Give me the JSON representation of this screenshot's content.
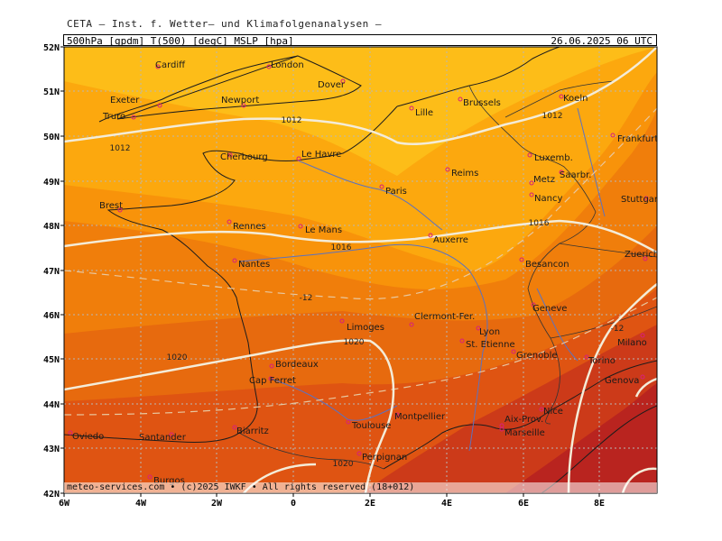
{
  "header": {
    "title": "CETA – Inst. f. Wetter– und Klimafolgenanalysen –",
    "info_left": "500hPa [gpdm] T(500) [degC] MSLP [hpa]",
    "info_right": "26.06.2025 06 UTC"
  },
  "axes": {
    "y_labels": [
      "52N",
      "51N",
      "50N",
      "49N",
      "48N",
      "47N",
      "46N",
      "45N",
      "44N",
      "43N",
      "42N"
    ],
    "x_labels": [
      "6W",
      "4W",
      "2W",
      "0",
      "2E",
      "4E",
      "6E",
      "8E"
    ]
  },
  "colors": {
    "band_1": "#fdbd18",
    "band_2": "#fca80e",
    "band_3": "#f8930a",
    "band_4": "#f07e0b",
    "band_5": "#e76a0e",
    "band_6": "#df5412",
    "band_7": "#cc3a19",
    "band_8": "#b9241f",
    "isobar": "#f4ecd8",
    "coast": "#1c1c1c",
    "river": "#5b72c0",
    "grid": "#b7b7b7",
    "city_dot": "#d8207a"
  },
  "cities": [
    {
      "name": "Cardiff"
    },
    {
      "name": "London"
    },
    {
      "name": "Exeter"
    },
    {
      "name": "Newport"
    },
    {
      "name": "Dover"
    },
    {
      "name": "Truro"
    },
    {
      "name": "Brussels"
    },
    {
      "name": "Lille"
    },
    {
      "name": "Koeln"
    },
    {
      "name": "Frankfurt"
    },
    {
      "name": "Luxemb."
    },
    {
      "name": "Saarbr."
    },
    {
      "name": "Reims"
    },
    {
      "name": "Le Havre"
    },
    {
      "name": "Cherbourg"
    },
    {
      "name": "Paris"
    },
    {
      "name": "Metz"
    },
    {
      "name": "Nancy"
    },
    {
      "name": "Stuttgart"
    },
    {
      "name": "Brest"
    },
    {
      "name": "Rennes"
    },
    {
      "name": "Le Mans"
    },
    {
      "name": "Auxerre"
    },
    {
      "name": "Nantes"
    },
    {
      "name": "Besancon"
    },
    {
      "name": "Zuerich"
    },
    {
      "name": "Geneve"
    },
    {
      "name": "Limoges"
    },
    {
      "name": "Clermont-Fer."
    },
    {
      "name": "Lyon"
    },
    {
      "name": "St. Etienne"
    },
    {
      "name": "Grenoble"
    },
    {
      "name": "Milano"
    },
    {
      "name": "Torino"
    },
    {
      "name": "Bordeaux"
    },
    {
      "name": "Cap Ferret"
    },
    {
      "name": "Genova"
    },
    {
      "name": "Nice"
    },
    {
      "name": "Aix-Prov."
    },
    {
      "name": "Marseille"
    },
    {
      "name": "Toulouse"
    },
    {
      "name": "Montpellier"
    },
    {
      "name": "Biarritz"
    },
    {
      "name": "Oviedo"
    },
    {
      "name": "Santander"
    },
    {
      "name": "Perpignan"
    },
    {
      "name": "Burgos"
    }
  ],
  "isobar_labels": [
    "1012",
    "1012",
    "1012",
    "1016",
    "1016",
    "1020",
    "1020",
    "1020"
  ],
  "temp_labels": [
    "-12",
    "-12"
  ],
  "footer": "meteo-services.com • (c)2025 IWKF • All rights reserved (18+012)"
}
